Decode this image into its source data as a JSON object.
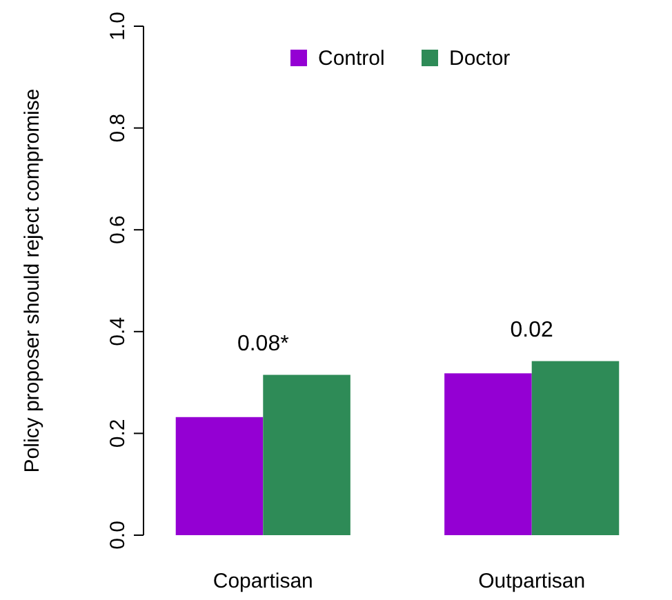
{
  "chart_data": {
    "type": "bar",
    "ylabel": "Policy proposer should reject compromise",
    "categories": [
      "Copartisan",
      "Outpartisan"
    ],
    "series": [
      {
        "name": "Control",
        "color": "#9400d3",
        "values": [
          0.232,
          0.318
        ]
      },
      {
        "name": "Doctor",
        "color": "#2e8b57",
        "values": [
          0.315,
          0.342
        ]
      }
    ],
    "ylim": [
      0,
      1
    ],
    "yticks": [
      {
        "value": 0,
        "label": "0.0"
      },
      {
        "value": 0.2,
        "label": "0.2"
      },
      {
        "value": 0.4,
        "label": "0.4"
      },
      {
        "value": 0.6,
        "label": "0.6"
      },
      {
        "value": 0.8,
        "label": "0.8"
      },
      {
        "value": 1,
        "label": "1.0"
      }
    ],
    "legend": "top",
    "annotations": [
      "0.08*",
      "0.02"
    ]
  }
}
